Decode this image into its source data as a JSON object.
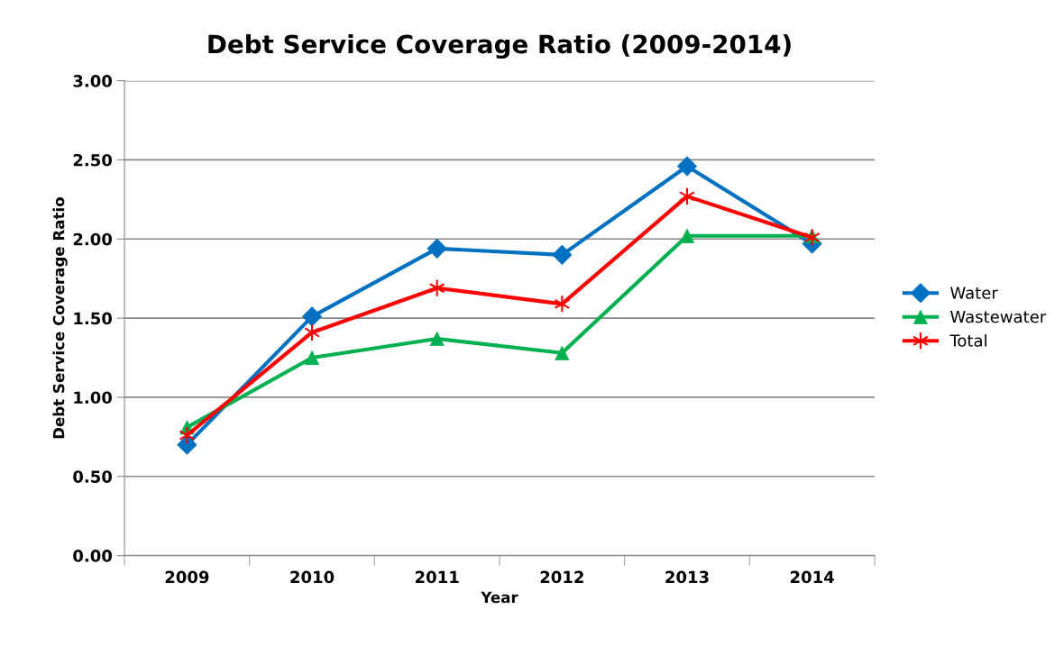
{
  "chart_data": {
    "type": "line",
    "title": "Debt Service Coverage Ratio (2009-2014)",
    "xlabel": "Year",
    "ylabel": "Debt Service Coverage Ratio",
    "categories": [
      "2009",
      "2010",
      "2011",
      "2012",
      "2013",
      "2014"
    ],
    "series": [
      {
        "name": "Water",
        "color": "#0070c0",
        "marker": "diamond",
        "values": [
          0.7,
          1.51,
          1.94,
          1.9,
          2.46,
          1.97
        ]
      },
      {
        "name": "Wastewater",
        "color": "#00b050",
        "marker": "triangle",
        "values": [
          0.81,
          1.25,
          1.37,
          1.28,
          2.02,
          2.02
        ]
      },
      {
        "name": "Total",
        "color": "#ff0000",
        "marker": "cross",
        "values": [
          0.76,
          1.41,
          1.69,
          1.59,
          2.27,
          2.01
        ]
      }
    ],
    "ylim": [
      0,
      3
    ],
    "yticks": [
      {
        "value": 0,
        "label": "0.00"
      },
      {
        "value": 0.5,
        "label": "0.50"
      },
      {
        "value": 1,
        "label": "1.00"
      },
      {
        "value": 1.5,
        "label": "1.50"
      },
      {
        "value": 2,
        "label": "2.00"
      },
      {
        "value": 2.5,
        "label": "2.50"
      },
      {
        "value": 3,
        "label": "3.00"
      }
    ],
    "grid": "y",
    "legend": "right",
    "line_style": "solid"
  }
}
